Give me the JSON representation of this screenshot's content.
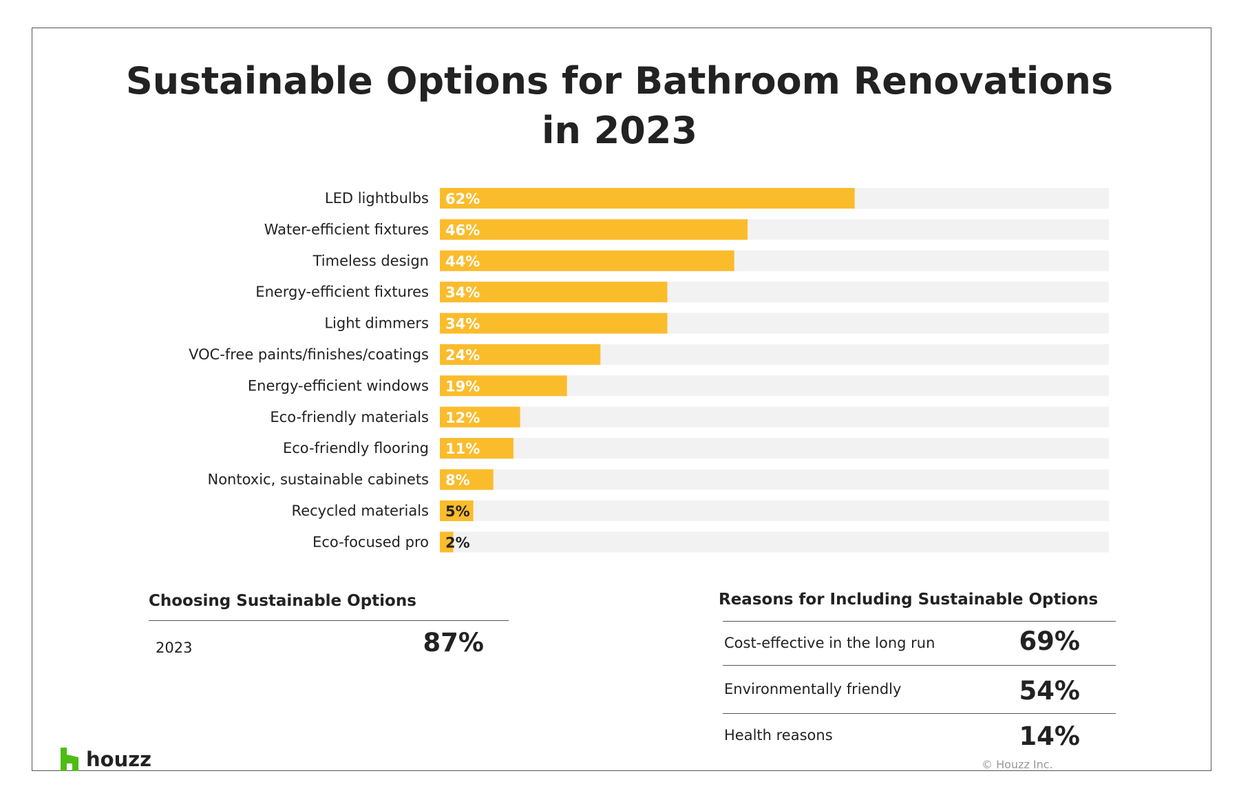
{
  "title_lines": [
    "Sustainable Options for Bathroom Renovations",
    "in 2023"
  ],
  "chart_data": {
    "type": "bar",
    "orientation": "horizontal",
    "title": "Sustainable Options for Bathroom Renovations in 2023",
    "categories": [
      "LED lightbulbs",
      "Water-efficient fixtures",
      "Timeless design",
      "Energy-efficient fixtures",
      "Light dimmers",
      "VOC-free paints/finishes/coatings",
      "Energy-efficient windows",
      "Eco-friendly materials",
      "Eco-friendly flooring",
      "Nontoxic, sustainable cabinets",
      "Recycled materials",
      "Eco-focused pro"
    ],
    "values": [
      62,
      46,
      44,
      34,
      34,
      24,
      19,
      12,
      11,
      8,
      5,
      2
    ],
    "value_labels": [
      "62%",
      "46%",
      "44%",
      "34%",
      "34%",
      "24%",
      "19%",
      "12%",
      "11%",
      "8%",
      "5%",
      "2%"
    ],
    "xlim": [
      0,
      100
    ],
    "unit": "%",
    "bar_color": "#fbbc2c",
    "track_color": "#f2f2f2",
    "grid": false,
    "legend": "none"
  },
  "choosing": {
    "title": "Choosing Sustainable Options",
    "rows": [
      {
        "label": "2023",
        "value": "87%"
      }
    ]
  },
  "reasons": {
    "title": "Reasons for Including Sustainable Options",
    "rows": [
      {
        "label": "Cost-effective in the long run",
        "value": "69%"
      },
      {
        "label": "Environmentally friendly",
        "value": "54%"
      },
      {
        "label": "Health reasons",
        "value": "14%"
      }
    ]
  },
  "footer": {
    "logo_text": "houzz",
    "logo_color": "#4dbc15",
    "copyright": "© Houzz Inc."
  }
}
